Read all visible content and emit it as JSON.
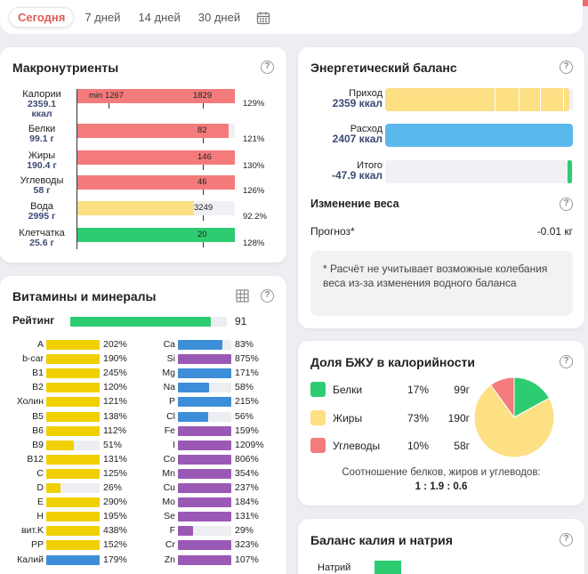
{
  "period": {
    "tabs": [
      "Сегодня",
      "7 дней",
      "14 дней",
      "30 дней"
    ],
    "active": 0
  },
  "macros": {
    "title": "Макронутриенты",
    "rows": [
      {
        "name": "Калории",
        "value": "2359.1",
        "unit": "ккал",
        "pct": "129%",
        "fill": 1.0,
        "color": "#f47b7b",
        "labels": [
          "min 1267",
          "1829"
        ]
      },
      {
        "name": "Белки",
        "value": "99.1 г",
        "unit": "",
        "pct": "121%",
        "fill": 0.96,
        "color": "#f47b7b",
        "labels": [
          "82"
        ]
      },
      {
        "name": "Жиры",
        "value": "190.4 г",
        "unit": "",
        "pct": "130%",
        "fill": 1.0,
        "color": "#f47b7b",
        "labels": [
          "146"
        ]
      },
      {
        "name": "Углеводы",
        "value": "58 г",
        "unit": "",
        "pct": "126%",
        "fill": 1.0,
        "color": "#f47b7b",
        "labels": [
          "46"
        ]
      },
      {
        "name": "Вода",
        "value": "2995 г",
        "unit": "",
        "pct": "92.2%",
        "fill": 0.74,
        "color": "#fde084",
        "labels": [
          "3249"
        ]
      },
      {
        "name": "Клетчатка",
        "value": "25.6 г",
        "unit": "",
        "pct": "128%",
        "fill": 1.0,
        "color": "#2ecc71",
        "labels": [
          "20"
        ]
      }
    ]
  },
  "vitamins": {
    "title": "Витамины и минералы",
    "rating_label": "Рейтинг",
    "rating_value": "91",
    "rating_fill": 0.91,
    "left": [
      {
        "name": "A",
        "pct": "202%",
        "fill": 1.0,
        "color": "#f0d000"
      },
      {
        "name": "b-car",
        "pct": "190%",
        "fill": 1.0,
        "color": "#f0d000"
      },
      {
        "name": "B1",
        "pct": "245%",
        "fill": 1.0,
        "color": "#f0d000"
      },
      {
        "name": "B2",
        "pct": "120%",
        "fill": 1.0,
        "color": "#f0d000"
      },
      {
        "name": "Холин",
        "pct": "121%",
        "fill": 1.0,
        "color": "#f0d000"
      },
      {
        "name": "B5",
        "pct": "138%",
        "fill": 1.0,
        "color": "#f0d000"
      },
      {
        "name": "B6",
        "pct": "112%",
        "fill": 1.0,
        "color": "#f0d000"
      },
      {
        "name": "B9",
        "pct": "51%",
        "fill": 0.51,
        "color": "#f0d000"
      },
      {
        "name": "B12",
        "pct": "131%",
        "fill": 1.0,
        "color": "#f0d000"
      },
      {
        "name": "C",
        "pct": "125%",
        "fill": 1.0,
        "color": "#f0d000"
      },
      {
        "name": "D",
        "pct": "26%",
        "fill": 0.26,
        "color": "#f0d000"
      },
      {
        "name": "E",
        "pct": "290%",
        "fill": 1.0,
        "color": "#f0d000"
      },
      {
        "name": "H",
        "pct": "195%",
        "fill": 1.0,
        "color": "#f0d000"
      },
      {
        "name": "вит.K",
        "pct": "438%",
        "fill": 1.0,
        "color": "#f0d000"
      },
      {
        "name": "PP",
        "pct": "152%",
        "fill": 1.0,
        "color": "#f0d000"
      },
      {
        "name": "Калий",
        "pct": "179%",
        "fill": 1.0,
        "color": "#3d8ed8"
      }
    ],
    "right": [
      {
        "name": "Ca",
        "pct": "83%",
        "fill": 0.83,
        "color": "#3d8ed8"
      },
      {
        "name": "Si",
        "pct": "875%",
        "fill": 1.0,
        "color": "#9b59b6"
      },
      {
        "name": "Mg",
        "pct": "171%",
        "fill": 1.0,
        "color": "#3d8ed8"
      },
      {
        "name": "Na",
        "pct": "58%",
        "fill": 0.58,
        "color": "#3d8ed8"
      },
      {
        "name": "P",
        "pct": "215%",
        "fill": 1.0,
        "color": "#3d8ed8"
      },
      {
        "name": "Cl",
        "pct": "56%",
        "fill": 0.56,
        "color": "#3d8ed8"
      },
      {
        "name": "Fe",
        "pct": "159%",
        "fill": 1.0,
        "color": "#9b59b6"
      },
      {
        "name": "I",
        "pct": "1209%",
        "fill": 1.0,
        "color": "#9b59b6"
      },
      {
        "name": "Co",
        "pct": "806%",
        "fill": 1.0,
        "color": "#9b59b6"
      },
      {
        "name": "Mn",
        "pct": "354%",
        "fill": 1.0,
        "color": "#9b59b6"
      },
      {
        "name": "Cu",
        "pct": "237%",
        "fill": 1.0,
        "color": "#9b59b6"
      },
      {
        "name": "Mo",
        "pct": "184%",
        "fill": 1.0,
        "color": "#9b59b6"
      },
      {
        "name": "Se",
        "pct": "131%",
        "fill": 1.0,
        "color": "#9b59b6"
      },
      {
        "name": "F",
        "pct": "29%",
        "fill": 0.29,
        "color": "#9b59b6"
      },
      {
        "name": "Cr",
        "pct": "323%",
        "fill": 1.0,
        "color": "#9b59b6"
      },
      {
        "name": "Zn",
        "pct": "107%",
        "fill": 1.0,
        "color": "#9b59b6"
      }
    ]
  },
  "energy": {
    "title": "Энергетический баланс",
    "intake_label": "Приход",
    "intake_value": "2359 ккал",
    "outgo_label": "Расход",
    "outgo_value": "2407 ккал",
    "total_label": "Итого",
    "total_value": "-47.9 ккал",
    "weight_title": "Изменение веса",
    "forecast_label": "Прогноз*",
    "forecast_value": "-0.01 кг",
    "note": "* Расчёт не учитывает возможные колебания веса из-за изменения водного баланса"
  },
  "bju": {
    "title": "Доля БЖУ в калорийности",
    "rows": [
      {
        "name": "Белки",
        "pct": "17%",
        "grams": "99г",
        "color": "#2ecc71"
      },
      {
        "name": "Жиры",
        "pct": "73%",
        "grams": "190г",
        "color": "#fde084"
      },
      {
        "name": "Углеводы",
        "pct": "10%",
        "grams": "58г",
        "color": "#f47b7b"
      }
    ],
    "ratio_label": "Соотношение белков, жиров и углеводов:",
    "ratio_value": "1 : 1.9 : 0.6"
  },
  "kna": {
    "title": "Баланс калия и натрия",
    "row_label": "Натрий"
  },
  "colors": {
    "accent": "#ef6b6b",
    "value_text": "#3d4a75",
    "track": "#f0f1f4"
  }
}
